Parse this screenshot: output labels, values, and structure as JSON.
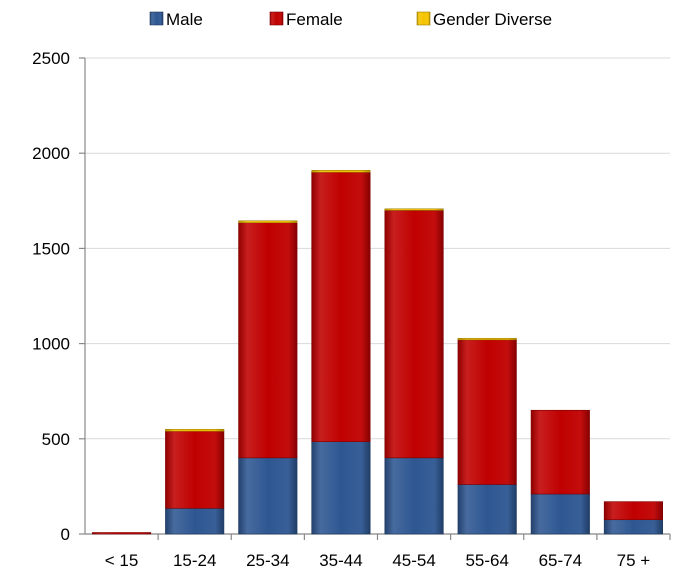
{
  "chart_data": {
    "type": "bar",
    "stacked": true,
    "categories": [
      "< 15",
      "15-24",
      "25-34",
      "35-44",
      "45-54",
      "55-64",
      "65-74",
      "75 +"
    ],
    "series": [
      {
        "name": "Male",
        "color": "#2e5792",
        "values": [
          0,
          135,
          400,
          485,
          400,
          260,
          210,
          75
        ]
      },
      {
        "name": "Female",
        "color": "#c00000",
        "values": [
          5,
          405,
          1235,
          1415,
          1300,
          760,
          440,
          95
        ]
      },
      {
        "name": "Gender Diverse",
        "color": "#f5c400",
        "values": [
          0,
          10,
          10,
          10,
          5,
          5,
          0,
          0
        ]
      }
    ],
    "yticks": [
      0,
      500,
      1000,
      1500,
      2000,
      2500
    ],
    "ylim": [
      0,
      2500
    ],
    "grid": true,
    "legend_position": "top"
  }
}
